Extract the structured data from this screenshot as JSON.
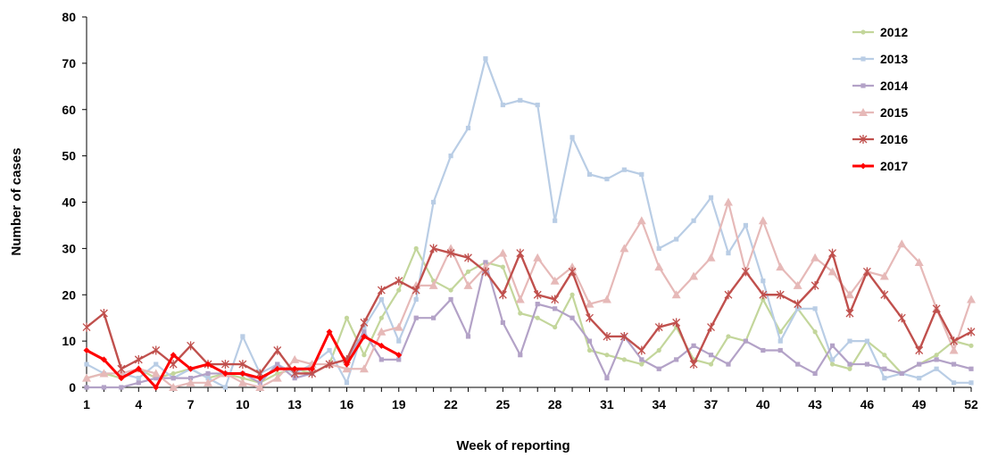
{
  "chart_data": {
    "type": "line",
    "xlabel": "Week of reporting",
    "ylabel": "Number of cases",
    "ylim": [
      0,
      80
    ],
    "yticks": [
      0,
      10,
      20,
      30,
      40,
      50,
      60,
      70,
      80
    ],
    "xlim": [
      1,
      52
    ],
    "xticks": [
      1,
      4,
      7,
      10,
      13,
      16,
      19,
      22,
      25,
      28,
      31,
      34,
      37,
      40,
      43,
      46,
      49,
      52
    ],
    "grid": false,
    "legend_position": "top-right",
    "series": [
      {
        "name": "2012",
        "color": "#c3d69b",
        "marker": "circle",
        "values": [
          2,
          3,
          2,
          4,
          2,
          3,
          4,
          2,
          3,
          2,
          1,
          3,
          4,
          3,
          5,
          15,
          7,
          15,
          21,
          30,
          23,
          21,
          25,
          27,
          26,
          16,
          15,
          13,
          20,
          8,
          7,
          6,
          5,
          8,
          13,
          6,
          5,
          11,
          10,
          19,
          12,
          17,
          12,
          5,
          4,
          10,
          7,
          3,
          5,
          7,
          10,
          9
        ]
      },
      {
        "name": "2013",
        "color": "#b9cde5",
        "marker": "square",
        "values": [
          5,
          3,
          3,
          2,
          5,
          2,
          4,
          2,
          0,
          11,
          3,
          5,
          3,
          5,
          8,
          1,
          13,
          19,
          10,
          19,
          40,
          50,
          56,
          71,
          61,
          62,
          61,
          36,
          54,
          46,
          45,
          47,
          46,
          30,
          32,
          36,
          41,
          29,
          35,
          23,
          10,
          17,
          17,
          6,
          10,
          10,
          2,
          3,
          2,
          4,
          1,
          1
        ]
      },
      {
        "name": "2014",
        "color": "#b3a2c7",
        "marker": "square",
        "values": [
          0,
          0,
          0,
          1,
          2,
          2,
          2,
          3,
          3,
          3,
          1,
          5,
          2,
          3,
          5,
          6,
          12,
          6,
          6,
          15,
          15,
          19,
          11,
          27,
          14,
          7,
          18,
          17,
          15,
          10,
          2,
          11,
          6,
          4,
          6,
          9,
          7,
          5,
          10,
          8,
          8,
          5,
          3,
          9,
          5,
          5,
          4,
          3,
          5,
          6,
          5,
          4
        ]
      },
      {
        "name": "2015",
        "color": "#e6b9b8",
        "marker": "triangle",
        "values": [
          2,
          3,
          3,
          4,
          3,
          0,
          1,
          1,
          3,
          1,
          0,
          2,
          6,
          5,
          5,
          4,
          4,
          12,
          13,
          22,
          22,
          30,
          22,
          26,
          29,
          19,
          28,
          23,
          26,
          18,
          19,
          30,
          36,
          26,
          20,
          24,
          28,
          40,
          25,
          36,
          26,
          22,
          28,
          25,
          20,
          25,
          24,
          31,
          27,
          17,
          8,
          19
        ]
      },
      {
        "name": "2016",
        "color": "#c0504d",
        "marker": "star",
        "values": [
          13,
          16,
          4,
          6,
          8,
          5,
          9,
          5,
          5,
          5,
          3,
          8,
          3,
          3,
          5,
          6,
          14,
          21,
          23,
          21,
          30,
          29,
          28,
          25,
          20,
          29,
          20,
          19,
          25,
          15,
          11,
          11,
          8,
          13,
          14,
          5,
          13,
          20,
          25,
          20,
          20,
          18,
          22,
          29,
          16,
          25,
          20,
          15,
          8,
          17,
          10,
          12
        ]
      },
      {
        "name": "2017",
        "color": "#ff0000",
        "marker": "diamond",
        "values": [
          8,
          6,
          2,
          4,
          0,
          7,
          4,
          5,
          3,
          3,
          2,
          4,
          4,
          4,
          12,
          5,
          11,
          9,
          7
        ]
      }
    ]
  }
}
